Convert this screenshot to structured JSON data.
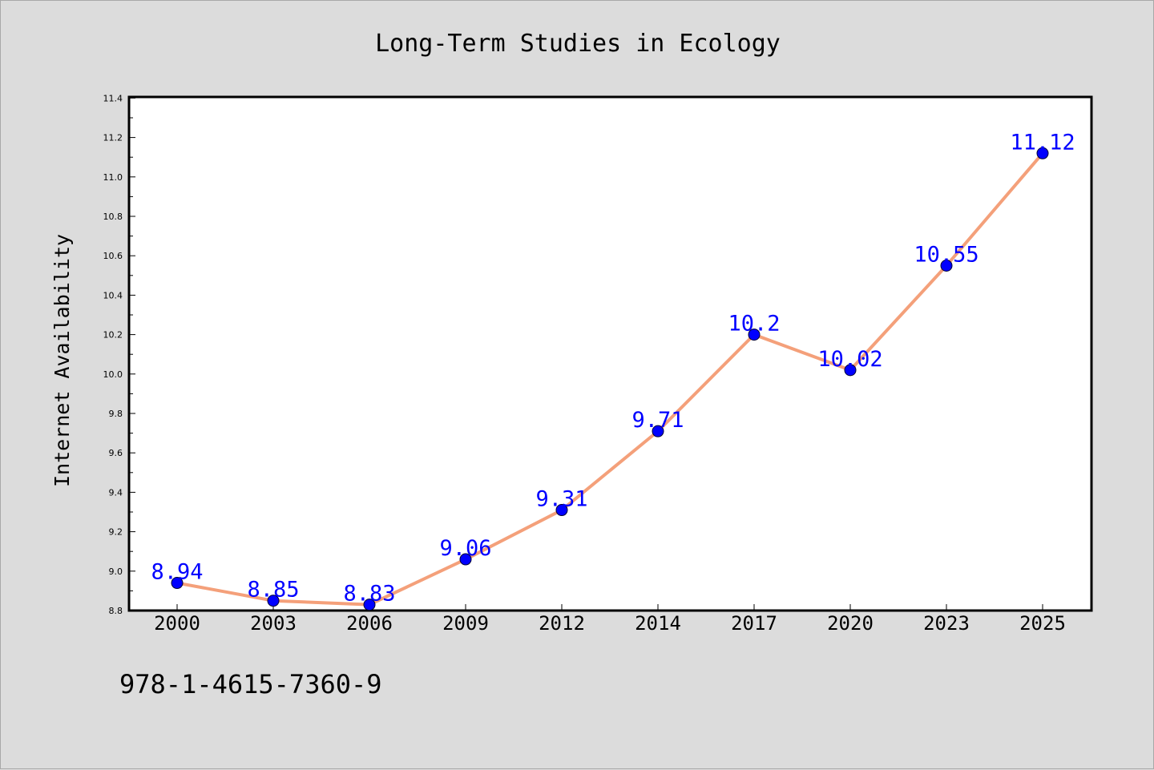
{
  "chart_data": {
    "type": "line",
    "title": "Long-Term Studies in Ecology",
    "xlabel": "",
    "ylabel": "Internet Availability",
    "categories": [
      "2000",
      "2003",
      "2006",
      "2009",
      "2012",
      "2014",
      "2017",
      "2020",
      "2023",
      "2025"
    ],
    "series": [
      {
        "values": [
          8.94,
          8.85,
          8.83,
          9.06,
          9.31,
          9.71,
          10.2,
          10.02,
          10.55,
          11.12
        ],
        "line_color": "#f4a07a",
        "marker_color": "#0000ff"
      }
    ],
    "data_labels": [
      "8.94",
      "8.85",
      "8.83",
      "9.06",
      "9.31",
      "9.71",
      "10.2",
      "10.02",
      "10.55",
      "11.12"
    ],
    "ylim": [
      8.8,
      11.4
    ],
    "yticks": [
      "8.8",
      "9.0",
      "9.2",
      "9.4",
      "9.6",
      "9.8",
      "10.0",
      "10.2",
      "10.4",
      "10.6",
      "10.8",
      "11.0",
      "11.2",
      "11.4"
    ],
    "grid": false,
    "legend": "none"
  },
  "footer": {
    "isbn": "978-1-4615-7360-9"
  },
  "colors": {
    "background": "#dcdcdc",
    "plot_background": "#ffffff",
    "line": "#f4a07a",
    "marker": "#0000ff",
    "data_label": "#0000ff"
  }
}
